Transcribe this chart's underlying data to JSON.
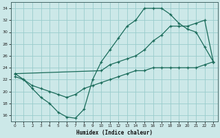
{
  "xlabel": "Humidex (Indice chaleur)",
  "bg_color": "#cce8e8",
  "grid_color": "#99cccc",
  "line_color": "#1a6b5a",
  "xlim": [
    -0.5,
    23.5
  ],
  "ylim": [
    15,
    35
  ],
  "yticks": [
    16,
    18,
    20,
    22,
    24,
    26,
    28,
    30,
    32,
    34
  ],
  "xticks": [
    0,
    1,
    2,
    3,
    4,
    5,
    6,
    7,
    8,
    9,
    10,
    11,
    12,
    13,
    14,
    15,
    16,
    17,
    18,
    19,
    20,
    21,
    22,
    23
  ],
  "curve1_x": [
    0,
    1,
    2,
    3,
    4,
    5,
    6,
    7,
    8,
    9,
    10,
    11,
    12,
    13,
    14,
    15,
    16,
    17,
    18,
    19,
    20,
    21,
    22,
    23
  ],
  "curve1_y": [
    23,
    22,
    20.5,
    19,
    18,
    16.5,
    15.7,
    15.5,
    17,
    22,
    25,
    27,
    29,
    31,
    32,
    34,
    34,
    34,
    33,
    31.5,
    30.5,
    30,
    27.5,
    25
  ],
  "curve2_x": [
    0,
    10,
    11,
    12,
    13,
    14,
    15,
    16,
    17,
    18,
    19,
    20,
    21,
    22,
    23
  ],
  "curve2_y": [
    23,
    23.5,
    24.5,
    25,
    25.5,
    26,
    27,
    28.5,
    29.5,
    31,
    31,
    31,
    31.5,
    32,
    25
  ],
  "curve3_x": [
    0,
    1,
    2,
    3,
    4,
    5,
    6,
    7,
    8,
    9,
    10,
    11,
    12,
    13,
    14,
    15,
    16,
    17,
    18,
    19,
    20,
    21,
    22,
    23
  ],
  "curve3_y": [
    22.5,
    22,
    21,
    20.5,
    20,
    19.5,
    19,
    19.5,
    20.5,
    21,
    21.5,
    22,
    22.5,
    23,
    23.5,
    23.5,
    24,
    24,
    24,
    24,
    24,
    24,
    24.5,
    25
  ]
}
